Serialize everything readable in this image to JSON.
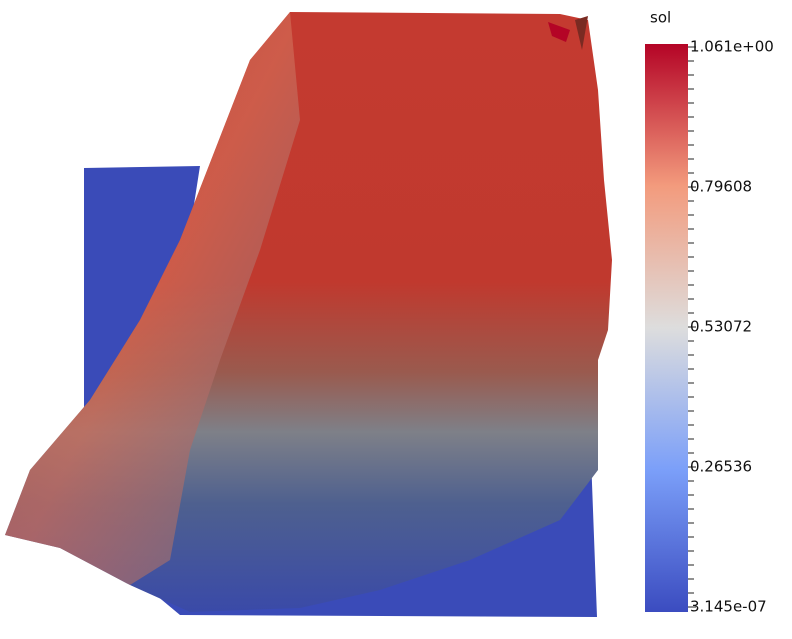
{
  "colorbar": {
    "title": "sol",
    "labels": [
      "1.061e+00",
      "0.79608",
      "0.53072",
      "0.26536",
      "3.145e-07"
    ]
  }
}
